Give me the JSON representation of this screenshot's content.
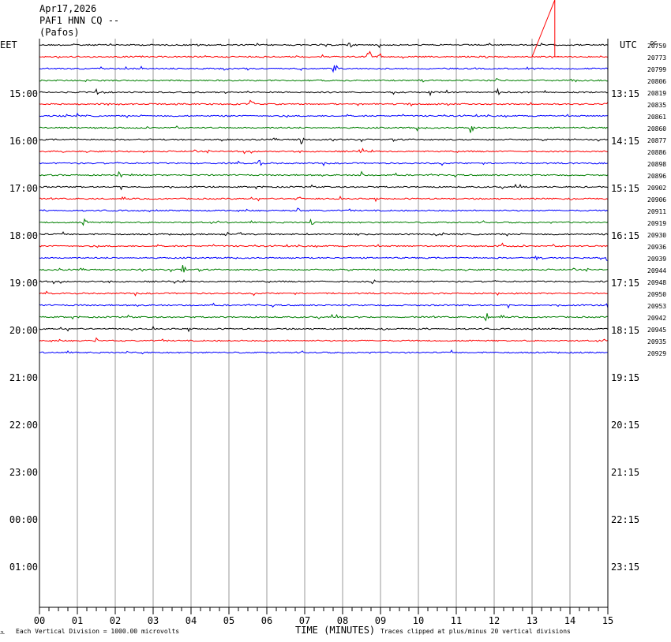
{
  "header": {
    "date": "Apr17,2026",
    "station": "PAF1 HNN CQ --",
    "location": "(Pafos)"
  },
  "labels": {
    "left_zone": "EET",
    "right_zone": "UTC",
    "dc_label": "DC",
    "xlabel": "TIME (MINUTES)",
    "scale_note": "Each Vertical Division = 1000.00 microvolts",
    "clip_note": "Traces clipped at plus/minus 20 vertical divisions",
    "corner_mark": "JL"
  },
  "chart_data": {
    "type": "line",
    "title": "",
    "xlabel": "TIME (MINUTES)",
    "x_ticks": [
      "00",
      "01",
      "02",
      "03",
      "04",
      "05",
      "06",
      "07",
      "08",
      "09",
      "10",
      "11",
      "12",
      "13",
      "14",
      "15"
    ],
    "xlim": [
      0,
      15
    ],
    "left_time_labels": [
      "15:00",
      "16:00",
      "17:00",
      "18:00",
      "19:00",
      "20:00",
      "21:00",
      "22:00",
      "23:00",
      "00:00",
      "01:00"
    ],
    "right_time_labels": [
      "13:15",
      "14:15",
      "15:15",
      "16:15",
      "17:15",
      "18:15",
      "19:15",
      "20:15",
      "21:15",
      "22:15",
      "23:15"
    ],
    "trace_colors": [
      "#000000",
      "#ff0000",
      "#0000ff",
      "#007f00"
    ],
    "dc_offsets": [
      20759,
      20773,
      20799,
      20806,
      20819,
      20835,
      20861,
      20860,
      20877,
      20886,
      20898,
      20896,
      20902,
      20906,
      20911,
      20919,
      20930,
      20936,
      20939,
      20944,
      20948,
      20950,
      20953,
      20942,
      20945,
      20935,
      20929
    ],
    "events": [
      {
        "trace": 0,
        "minute": 4.2,
        "amp": 4
      },
      {
        "trace": 0,
        "minute": 8.2,
        "amp": 4
      },
      {
        "trace": 1,
        "minute": 8.7,
        "amp": 10
      },
      {
        "trace": 1,
        "minute": 9.0,
        "amp": 5
      },
      {
        "trace": 1,
        "minute": 11.8,
        "amp": 3
      },
      {
        "trace": 2,
        "minute": 7.8,
        "amp": 12
      },
      {
        "trace": 2,
        "minute": 4.9,
        "amp": 4
      },
      {
        "trace": 3,
        "minute": 10.1,
        "amp": 4
      },
      {
        "trace": 3,
        "minute": 12.1,
        "amp": 4
      },
      {
        "trace": 4,
        "minute": 1.5,
        "amp": 4
      },
      {
        "trace": 4,
        "minute": 10.3,
        "amp": 5
      },
      {
        "trace": 4,
        "minute": 12.1,
        "amp": 5
      },
      {
        "trace": 5,
        "minute": 5.6,
        "amp": 8
      },
      {
        "trace": 5,
        "minute": 3.6,
        "amp": 3
      },
      {
        "trace": 5,
        "minute": 9.8,
        "amp": 3
      },
      {
        "trace": 6,
        "minute": 1.0,
        "amp": 4
      },
      {
        "trace": 7,
        "minute": 11.4,
        "amp": 9
      },
      {
        "trace": 7,
        "minute": 10.0,
        "amp": 4
      },
      {
        "trace": 8,
        "minute": 6.9,
        "amp": 9
      },
      {
        "trace": 8,
        "minute": 14.1,
        "amp": 4
      },
      {
        "trace": 9,
        "minute": 8.5,
        "amp": 6
      },
      {
        "trace": 10,
        "minute": 5.8,
        "amp": 5
      },
      {
        "trace": 11,
        "minute": 2.1,
        "amp": 8
      },
      {
        "trace": 11,
        "minute": 8.5,
        "amp": 4
      },
      {
        "trace": 13,
        "minute": 6.8,
        "amp": 4
      },
      {
        "trace": 14,
        "minute": 6.8,
        "amp": 5
      },
      {
        "trace": 15,
        "minute": 1.2,
        "amp": 7
      },
      {
        "trace": 15,
        "minute": 7.2,
        "amp": 6
      },
      {
        "trace": 16,
        "minute": 5.3,
        "amp": 5
      },
      {
        "trace": 17,
        "minute": 12.2,
        "amp": 6
      },
      {
        "trace": 18,
        "minute": 13.1,
        "amp": 4
      },
      {
        "trace": 18,
        "minute": 15.0,
        "amp": 5
      },
      {
        "trace": 19,
        "minute": 3.8,
        "amp": 10
      },
      {
        "trace": 20,
        "minute": 8.8,
        "amp": 4
      },
      {
        "trace": 22,
        "minute": 15.0,
        "amp": 4
      },
      {
        "trace": 23,
        "minute": 8.4,
        "amp": 6
      },
      {
        "trace": 23,
        "minute": 11.8,
        "amp": 7
      },
      {
        "trace": 25,
        "minute": 1.5,
        "amp": 5
      }
    ],
    "clip_spike": {
      "trace": 1,
      "from_minute": 13.0,
      "peak_minute": 13.6,
      "to_minute": 13.6
    },
    "grid": true
  }
}
